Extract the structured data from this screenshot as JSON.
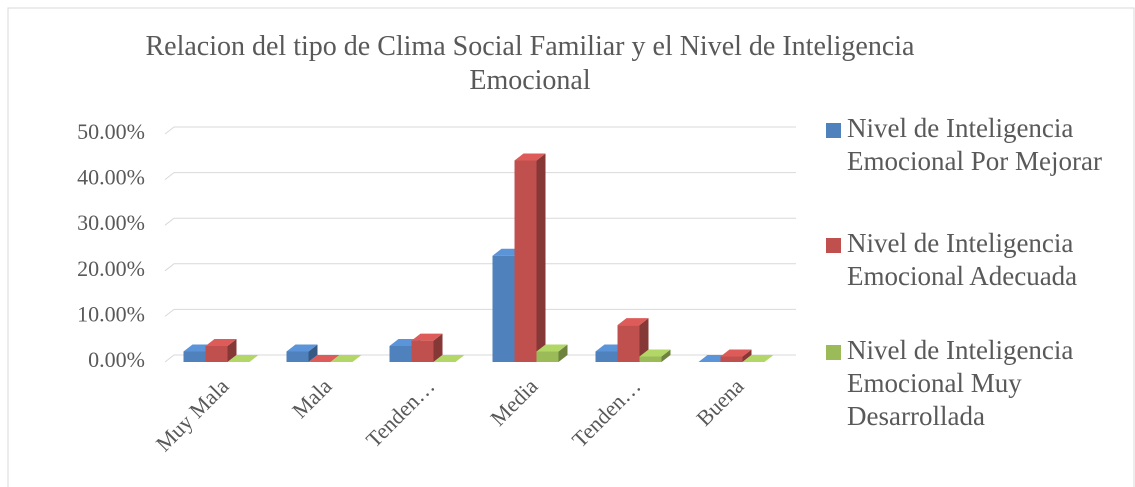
{
  "chart_data": {
    "type": "bar3d",
    "title": "Relacion del tipo de Clima Social Familiar y el Nivel de Inteligencia Emocional",
    "categories": [
      "Muy Mala",
      "Mala",
      "Tenden…",
      "Media",
      "Tenden…",
      "Buena"
    ],
    "series": [
      {
        "name": "Nivel de Inteligencia Emocional Por Mejorar",
        "color": "#4f81bd",
        "values": [
          2.3,
          2.3,
          3.5,
          23.3,
          2.3,
          0
        ]
      },
      {
        "name": "Nivel de Inteligencia Emocional Adecuada",
        "color": "#c0504d",
        "values": [
          3.5,
          0,
          4.7,
          44.2,
          8.1,
          1.2
        ]
      },
      {
        "name": "Nivel de Inteligencia Emocional Muy Desarrollada",
        "color": "#9bbb59",
        "values": [
          0,
          0,
          0,
          2.3,
          1.2,
          0
        ]
      }
    ],
    "ylim": [
      0,
      50
    ],
    "yticks": [
      {
        "value": 0,
        "label": "0.00%"
      },
      {
        "value": 10,
        "label": "10.00%"
      },
      {
        "value": 20,
        "label": "20.00%"
      },
      {
        "value": 30,
        "label": "30.00%"
      },
      {
        "value": 40,
        "label": "40.00%"
      },
      {
        "value": 50,
        "label": "50.00%"
      }
    ],
    "grid": true,
    "legend": "right"
  }
}
